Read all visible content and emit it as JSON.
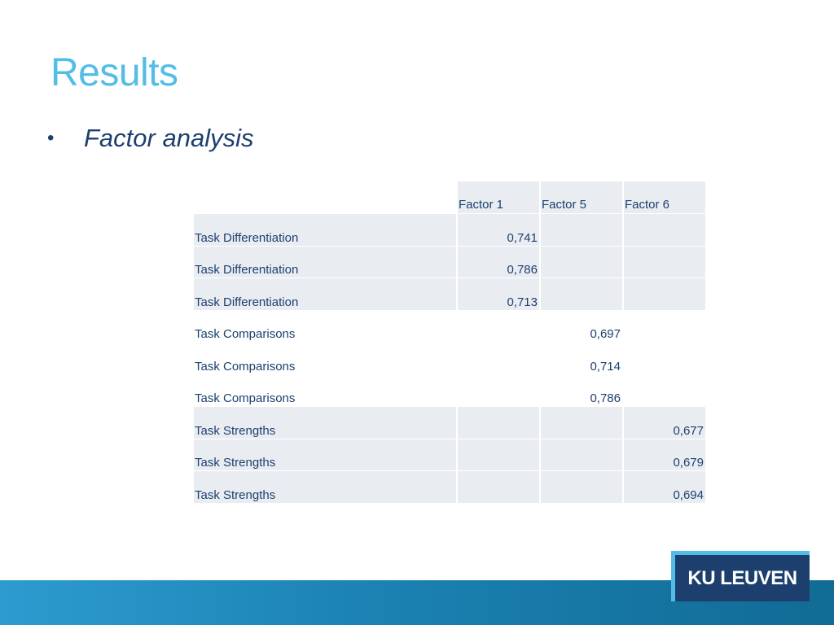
{
  "slide": {
    "title": "Results",
    "bullet_symbol": "•",
    "bullet_text": "Factor analysis"
  },
  "table": {
    "headers": [
      "",
      "Factor 1",
      "Factor 5",
      "Factor 6"
    ],
    "rows": [
      {
        "label": "Task Differentiation",
        "f1": "0,741",
        "f5": "",
        "f6": ""
      },
      {
        "label": "Task Differentiation",
        "f1": "0,786",
        "f5": "",
        "f6": ""
      },
      {
        "label": "Task Differentiation",
        "f1": "0,713",
        "f5": "",
        "f6": ""
      },
      {
        "label": "Task Comparisons",
        "f1": "",
        "f5": "0,697",
        "f6": ""
      },
      {
        "label": "Task Comparisons",
        "f1": "",
        "f5": "0,714",
        "f6": ""
      },
      {
        "label": "Task Comparisons",
        "f1": "",
        "f5": "0,786",
        "f6": ""
      },
      {
        "label": "Task Strengths",
        "f1": "",
        "f5": "",
        "f6": "0,677"
      },
      {
        "label": "Task Strengths",
        "f1": "",
        "f5": "",
        "f6": "0,679"
      },
      {
        "label": "Task Strengths",
        "f1": "",
        "f5": "",
        "f6": "0,694"
      }
    ]
  },
  "logo": {
    "text": "KU LEUVEN"
  },
  "colors": {
    "title": "#52bde7",
    "text": "#1d3f6e",
    "cell_shade": "#e9edf2",
    "bar": "#1b82b3"
  }
}
